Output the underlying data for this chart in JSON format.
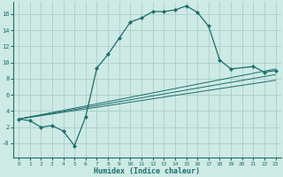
{
  "xlabel": "Humidex (Indice chaleur)",
  "background_color": "#ceeae4",
  "grid_color": "#a8cec8",
  "line_color": "#1a6e6e",
  "xlim": [
    -0.5,
    23.5
  ],
  "ylim": [
    -1.8,
    17.5
  ],
  "xticks": [
    0,
    1,
    2,
    3,
    4,
    5,
    6,
    7,
    8,
    9,
    10,
    11,
    12,
    13,
    14,
    15,
    16,
    17,
    18,
    19,
    20,
    21,
    22,
    23
  ],
  "yticks": [
    0,
    2,
    4,
    6,
    8,
    10,
    12,
    14,
    16
  ],
  "main_x": [
    0,
    1,
    2,
    3,
    4,
    5,
    6,
    7,
    8,
    9,
    10,
    11,
    12,
    13,
    14,
    15,
    16,
    17,
    18,
    19,
    21,
    22,
    23
  ],
  "main_y": [
    3.0,
    2.8,
    2.0,
    2.2,
    1.5,
    -0.3,
    3.3,
    9.3,
    11.0,
    13.0,
    15.0,
    15.5,
    16.3,
    16.3,
    16.5,
    17.0,
    16.2,
    14.5,
    10.3,
    9.2,
    9.5,
    8.8,
    9.0
  ],
  "line1_x": [
    0,
    23
  ],
  "line1_y": [
    3.0,
    9.2
  ],
  "line2_x": [
    0,
    23
  ],
  "line2_y": [
    3.0,
    8.5
  ],
  "line3_x": [
    0,
    23
  ],
  "line3_y": [
    3.0,
    7.8
  ]
}
